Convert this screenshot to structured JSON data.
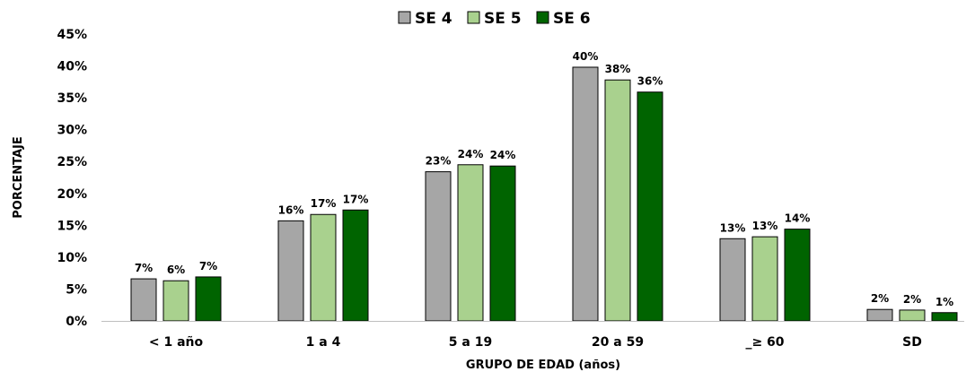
{
  "chart_data": {
    "type": "bar",
    "xlabel": "GRUPO DE EDAD (años)",
    "ylabel": "PORCENTAJE",
    "ylim": [
      0,
      45
    ],
    "yticks": [
      0,
      5,
      10,
      15,
      20,
      25,
      30,
      35,
      40,
      45
    ],
    "ytick_suffix": "%",
    "grid": false,
    "legend_position": "top-center",
    "categories": [
      "< 1 año",
      "1 a 4",
      "5 a 19",
      "20 a 59",
      "_≥ 60",
      "SD"
    ],
    "series": [
      {
        "name": "SE 4",
        "color": "#a6a6a6",
        "values": [
          6.6,
          15.7,
          23.4,
          39.8,
          12.9,
          1.8
        ],
        "labels": [
          "7%",
          "16%",
          "23%",
          "40%",
          "13%",
          "2%"
        ]
      },
      {
        "name": "SE 5",
        "color": "#a9d18e",
        "values": [
          6.3,
          16.7,
          24.5,
          37.8,
          13.2,
          1.7
        ],
        "labels": [
          "6%",
          "17%",
          "24%",
          "38%",
          "13%",
          "2%"
        ]
      },
      {
        "name": "SE 6",
        "color": "#006400",
        "values": [
          6.9,
          17.4,
          24.3,
          35.9,
          14.4,
          1.3
        ],
        "labels": [
          "7%",
          "17%",
          "24%",
          "36%",
          "14%",
          "1%"
        ]
      }
    ]
  }
}
